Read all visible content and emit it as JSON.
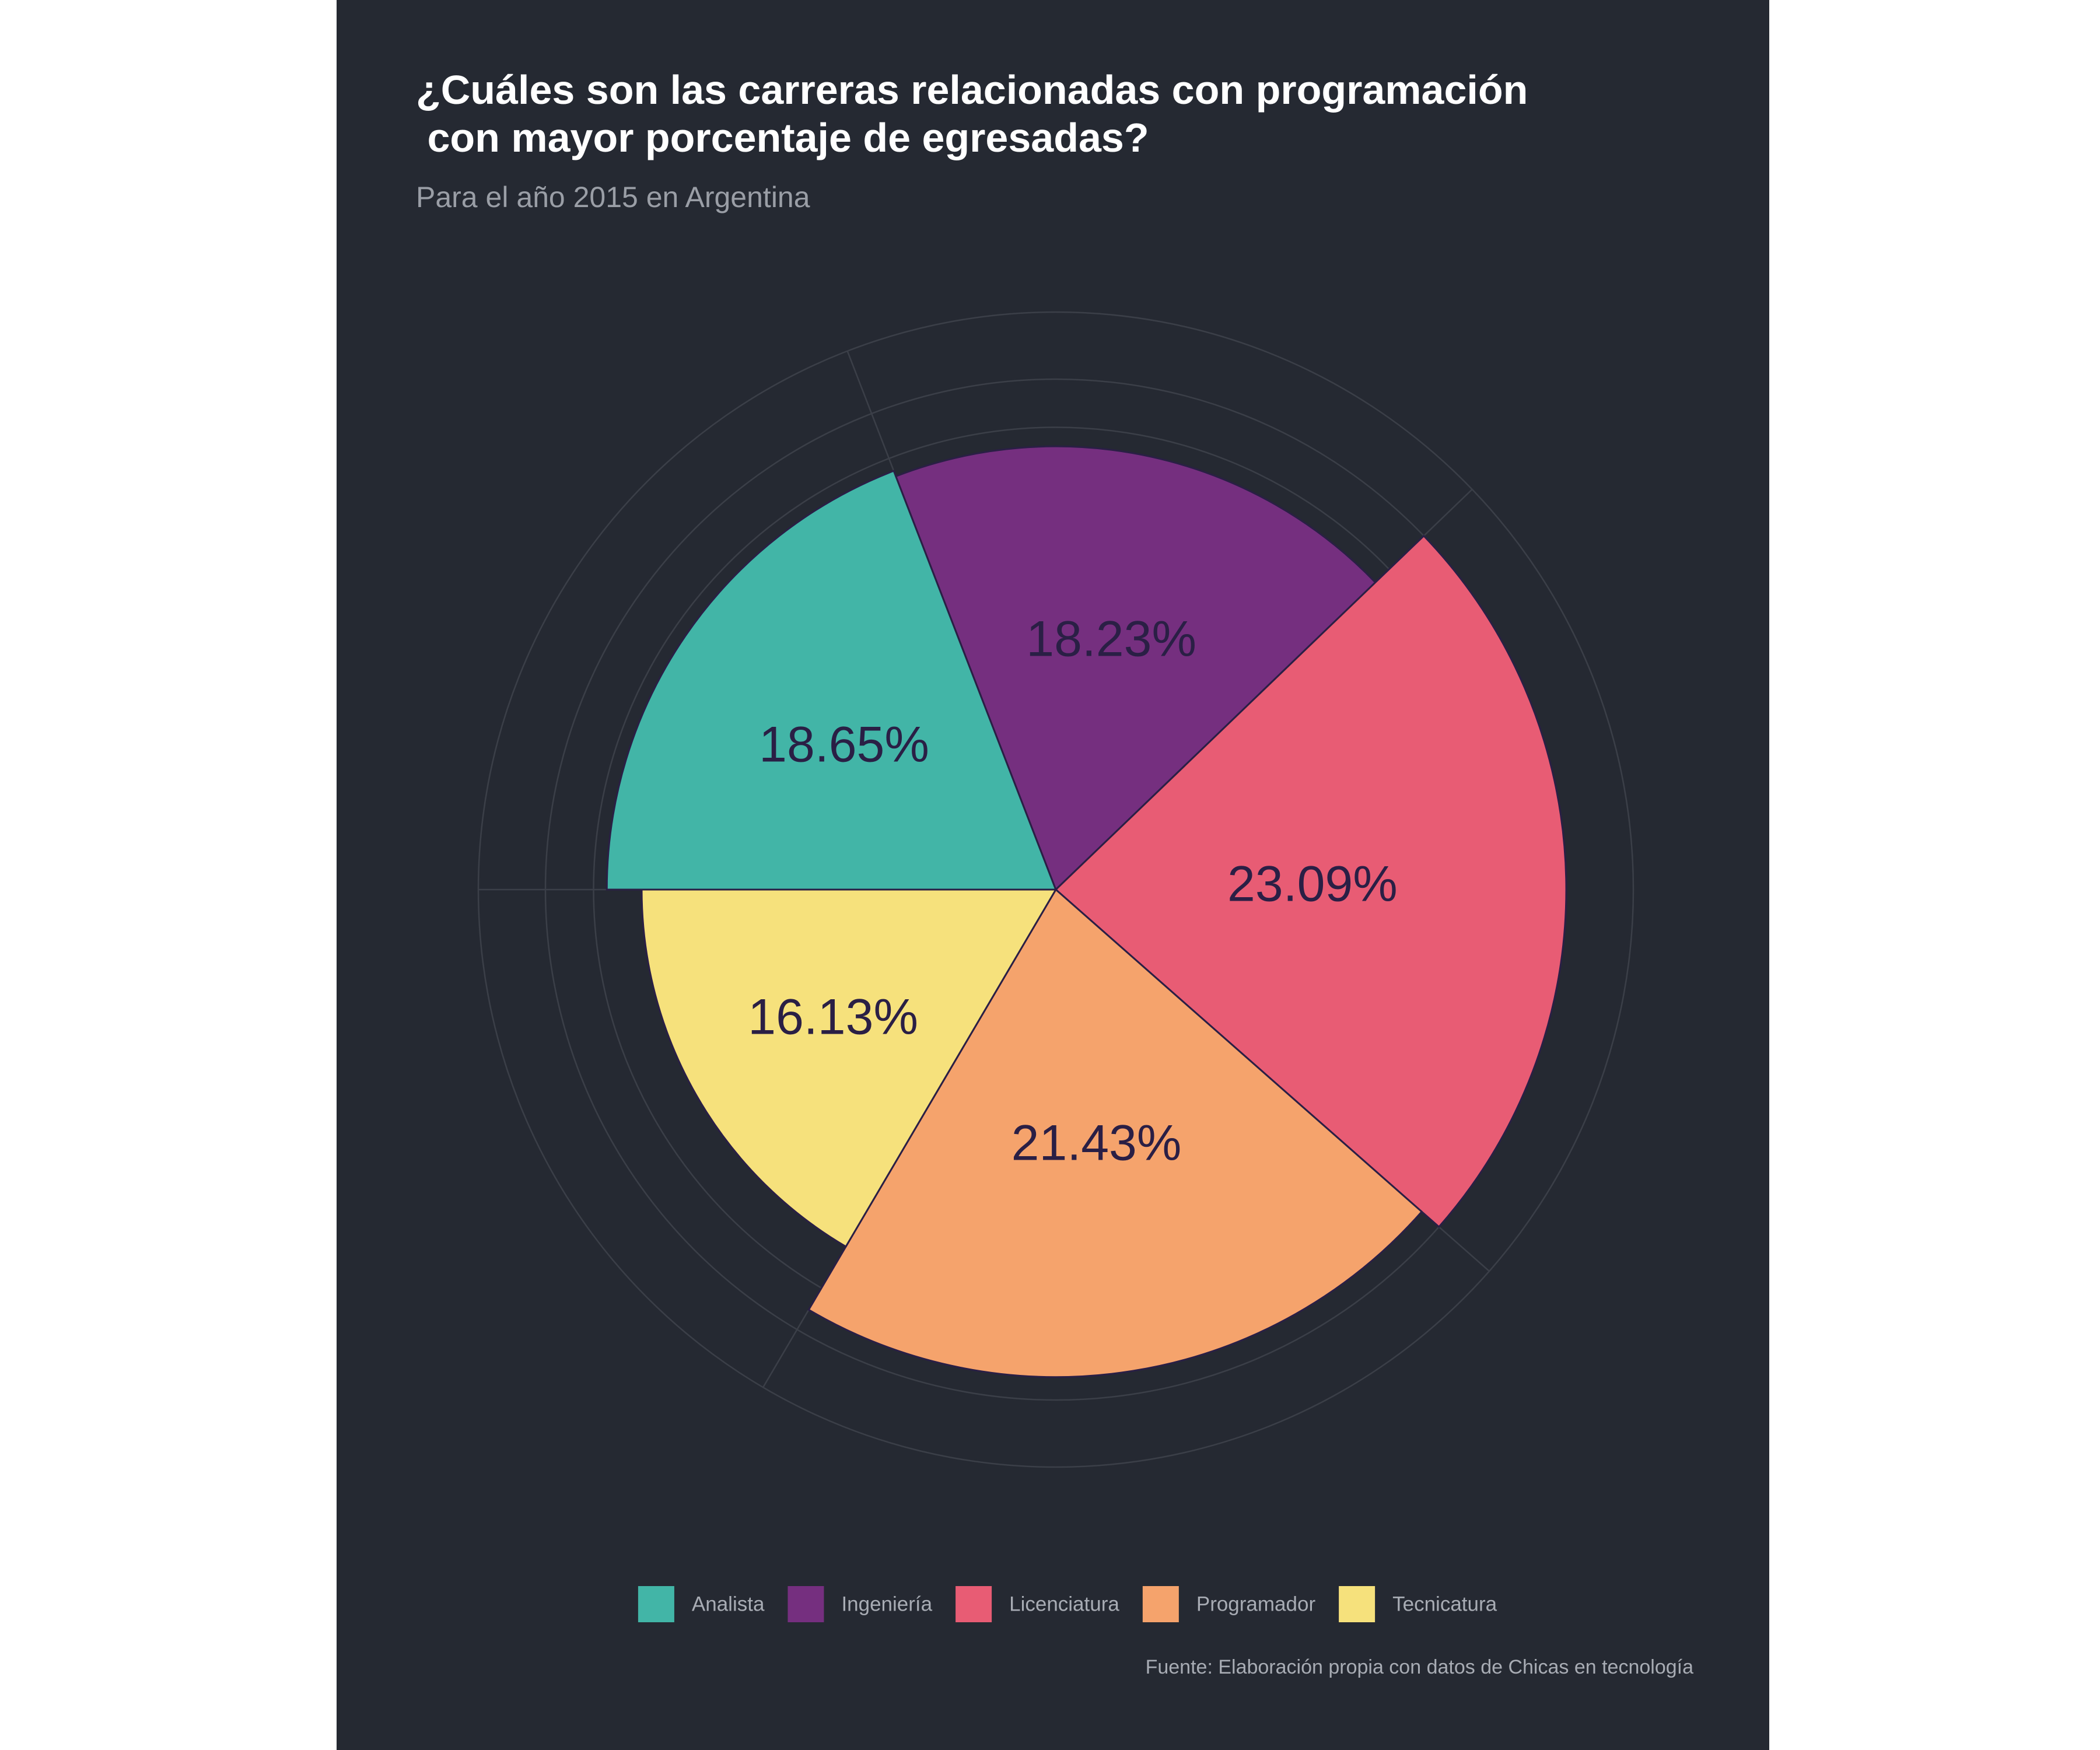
{
  "chart_data": {
    "type": "pie",
    "title_lines": [
      "¿Cuáles son las carreras relacionadas con programación",
      " con mayor porcentaje de egresadas?"
    ],
    "subtitle": "Para el año 2015 en Argentina",
    "caption": "Fuente: Elaboración propia con datos de Chicas en tecnología",
    "legend_position": "bottom",
    "grid": true,
    "slices": [
      {
        "name": "Analista",
        "value": 18.65,
        "label": "18.65%",
        "color": "#42b5a7"
      },
      {
        "name": "Ingeniería",
        "value": 18.23,
        "label": "18.23%",
        "color": "#752f7f"
      },
      {
        "name": "Licenciatura",
        "value": 23.09,
        "label": "23.09%",
        "color": "#e85c74"
      },
      {
        "name": "Programador",
        "value": 21.43,
        "label": "21.43%",
        "color": "#f5a36c"
      },
      {
        "name": "Tecnicatura",
        "value": 16.13,
        "label": "16.13%",
        "color": "#f6e17c"
      }
    ]
  },
  "colors": {
    "background": "#252932",
    "page": "#ffffff",
    "grid": "#3b3f48",
    "slice_border": "#2a1f45"
  }
}
